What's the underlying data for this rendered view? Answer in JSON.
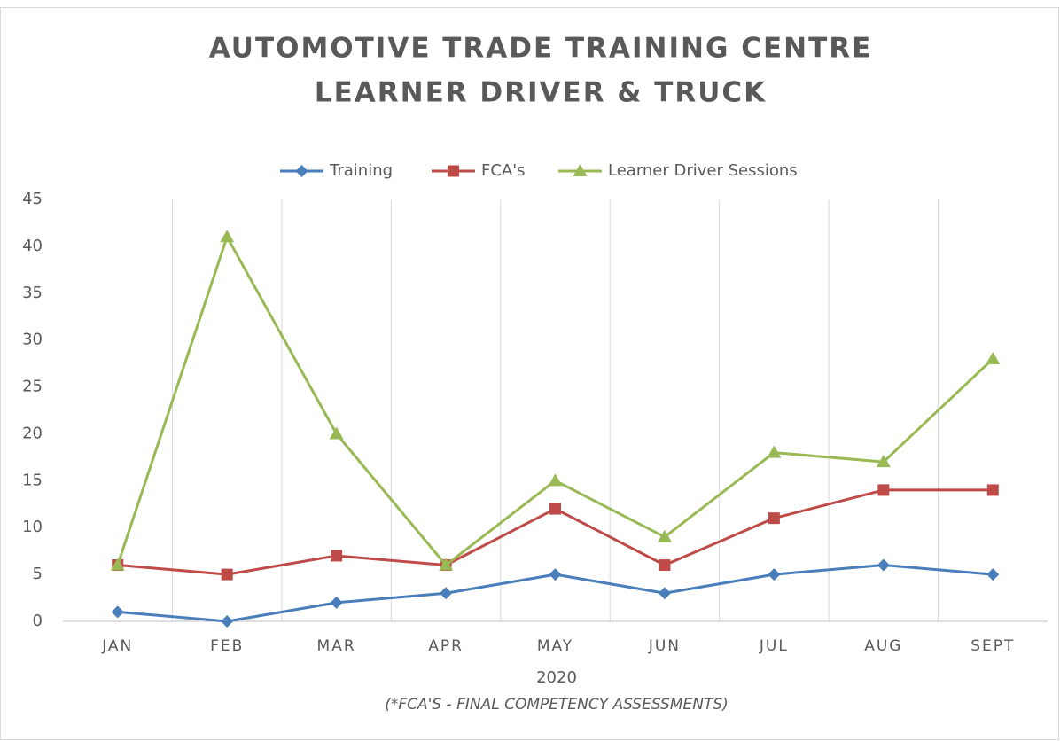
{
  "chart_data": {
    "type": "line",
    "title": [
      "AUTOMOTIVE TRADE TRAINING CENTRE",
      "LEARNER DRIVER & TRUCK"
    ],
    "x_label": "2020",
    "annotation": "(*FCA'S - FINAL COMPETENCY ASSESSMENTS)",
    "categories": [
      "JAN",
      "FEB",
      "MAR",
      "APR",
      "MAY",
      "JUN",
      "JUL",
      "AUG",
      "SEPT"
    ],
    "series": [
      {
        "name": "Training",
        "color": "#4a7ebb",
        "marker": "diamond",
        "values": [
          1,
          0,
          2,
          3,
          5,
          3,
          5,
          6,
          5
        ]
      },
      {
        "name": "FCA's",
        "color": "#be4b48",
        "marker": "square",
        "values": [
          6,
          5,
          7,
          6,
          12,
          6,
          11,
          14,
          14
        ]
      },
      {
        "name": "Learner Driver Sessions",
        "color": "#98b954",
        "marker": "triangle",
        "values": [
          6,
          41,
          20,
          6,
          15,
          9,
          18,
          17,
          28
        ]
      }
    ],
    "ylim": [
      0,
      45
    ],
    "yticks": [
      0,
      5,
      10,
      15,
      20,
      25,
      30,
      35,
      40,
      45
    ],
    "grid": "vertical",
    "legend": "top"
  }
}
